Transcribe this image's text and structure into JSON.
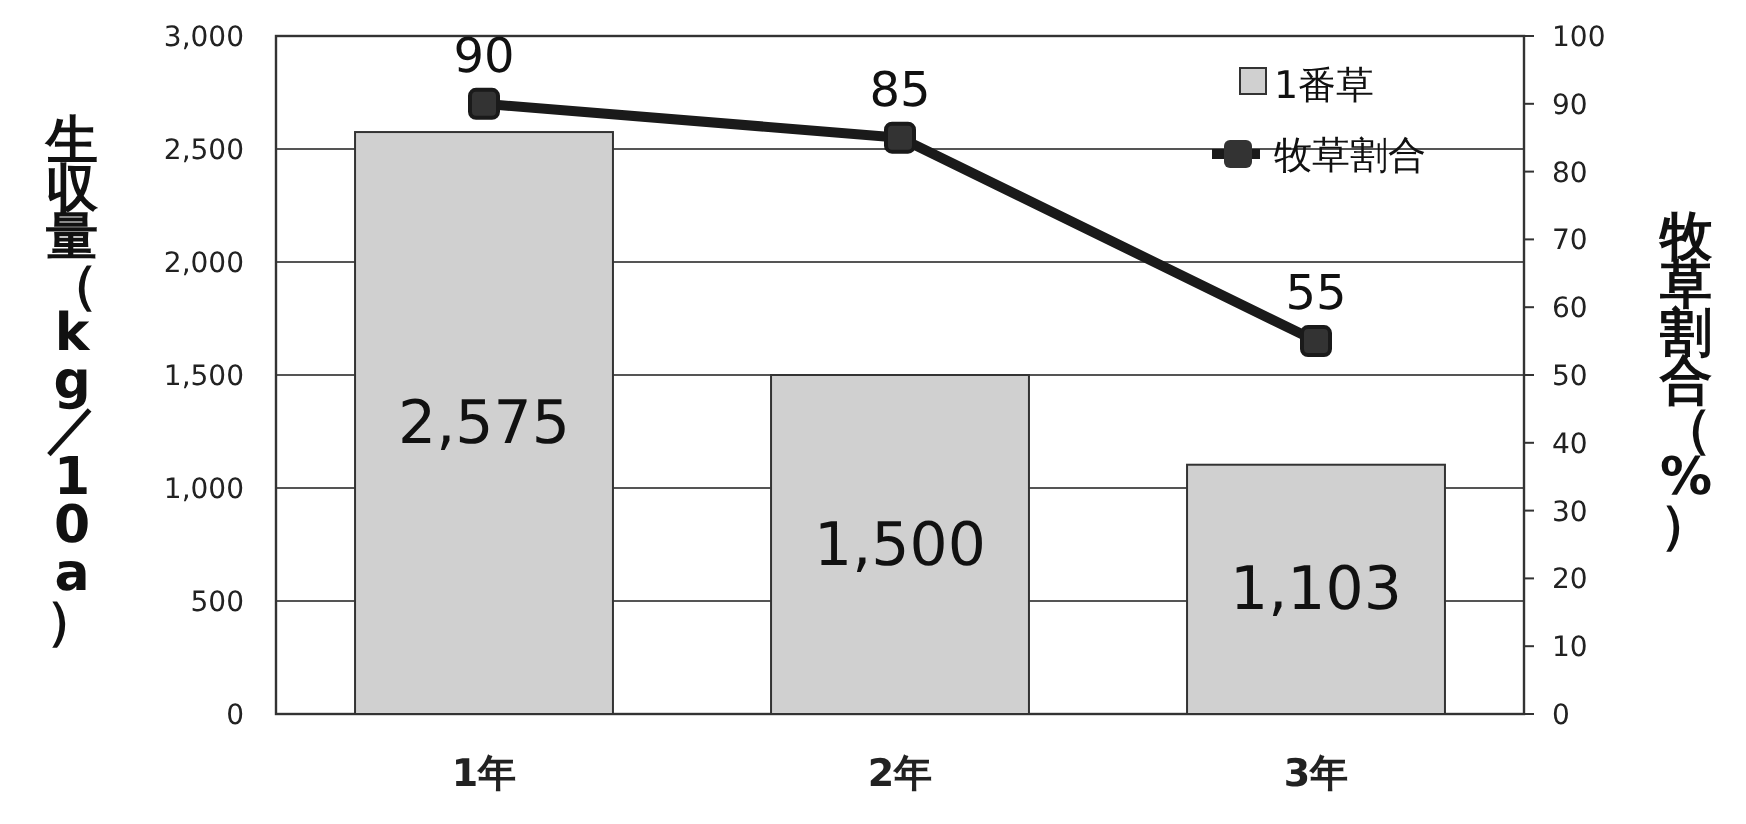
{
  "chart_data": {
    "type": "bar",
    "categories": [
      "1年",
      "2年",
      "3年"
    ],
    "ylabel": "生収量（kg／10a）",
    "y2label": "牧草割合（%）",
    "series": [
      {
        "name": "1番草",
        "color": "#d0d0d0",
        "values": [
          2575,
          1500,
          1103
        ],
        "value_labels": [
          "2,575",
          "1,500",
          "1,103"
        ]
      },
      {
        "name": "牧草割合",
        "type": "line",
        "axis": "y2",
        "color": "#1a1a1a",
        "marker": "square",
        "values": [
          90,
          85,
          55
        ],
        "value_labels": [
          "90",
          "85",
          "55"
        ]
      }
    ],
    "ylim": [
      0,
      3000
    ],
    "yticks": [
      0,
      {
        "value": 500,
        "label": "500"
      },
      {
        "value": 1000,
        "label": "1,000"
      },
      {
        "value": 1500,
        "label": "1,500"
      },
      {
        "value": 2000,
        "label": "2,000"
      },
      {
        "value": 2500,
        "label": "2,500"
      },
      {
        "value": 3000,
        "label": "3,000"
      }
    ],
    "y2lim": [
      0,
      100
    ],
    "y2ticks": [
      0,
      10,
      20,
      30,
      40,
      50,
      60,
      70,
      80,
      90,
      100
    ],
    "grid": "y",
    "legend": "top right"
  }
}
